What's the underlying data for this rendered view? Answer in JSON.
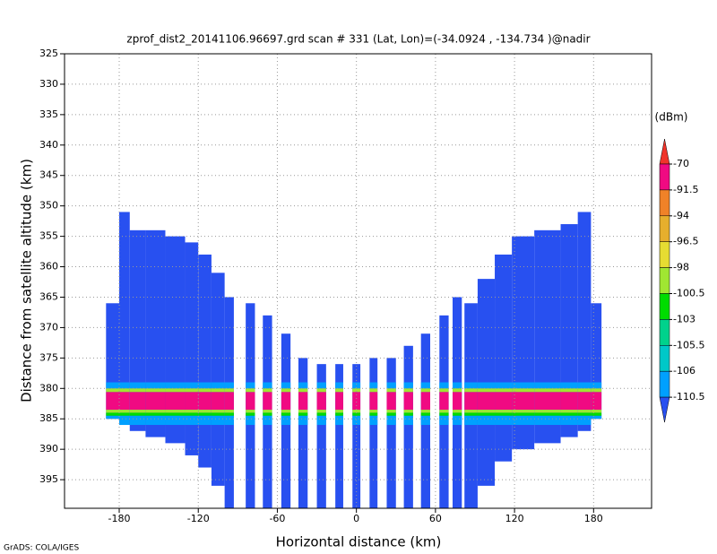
{
  "chart_data": {
    "type": "heatmap",
    "title": "zprof_dist2_20141106.96697.grd  scan # 331  (Lat, Lon)=(-34.0924 , -134.734 )@nadir",
    "x_label": "Horizontal distance (km)",
    "y_label": "Distance from satellite altitude (km)",
    "colorbar_label": "(dBm)",
    "footer": "GrADS: COLA/IGES",
    "xlim": [
      -221.5,
      224
    ],
    "ylim": [
      325,
      399.7
    ],
    "y_inverted": true,
    "xticks": [
      -180,
      -120,
      -60,
      0,
      60,
      120,
      180
    ],
    "yticks": [
      325,
      330,
      335,
      340,
      345,
      350,
      355,
      360,
      365,
      370,
      375,
      380,
      385,
      390,
      395
    ],
    "grid": true,
    "levels": [
      -70,
      -91.5,
      -94,
      -96.5,
      -98,
      -100.5,
      -103,
      -105.5,
      -106,
      -110.5
    ],
    "colors": [
      "#f0342a",
      "#f00a82",
      "#f08228",
      "#e6af2d",
      "#e6dc32",
      "#a0e632",
      "#00dc00",
      "#00d28c",
      "#00c8c8",
      "#00a0ff",
      "#2850f0"
    ],
    "columns": [
      {
        "x": [
          -190,
          -180
        ],
        "y": [
          366,
          385
        ],
        "value": -112
      },
      {
        "x": [
          -180,
          -172
        ],
        "y": [
          351,
          386
        ],
        "value": -112
      },
      {
        "x": [
          -172,
          -160
        ],
        "y": [
          354,
          387
        ],
        "value": -112
      },
      {
        "x": [
          -160,
          -145
        ],
        "y": [
          354,
          388
        ],
        "value": -112
      },
      {
        "x": [
          -145,
          -130
        ],
        "y": [
          355,
          389
        ],
        "value": -112
      },
      {
        "x": [
          -130,
          -120
        ],
        "y": [
          356,
          391
        ],
        "value": -112
      },
      {
        "x": [
          -120,
          -110
        ],
        "y": [
          358,
          393
        ],
        "value": -112
      },
      {
        "x": [
          -110,
          -100
        ],
        "y": [
          361,
          396
        ],
        "value": -112
      },
      {
        "x": [
          -100,
          -93
        ],
        "y": [
          365,
          399.7
        ],
        "value": -112
      },
      {
        "x": [
          -84,
          -77
        ],
        "y": [
          366,
          399.7
        ],
        "value": -112
      },
      {
        "x": [
          -71,
          -64
        ],
        "y": [
          368,
          399.7
        ],
        "value": -112
      },
      {
        "x": [
          -57,
          -50
        ],
        "y": [
          371,
          399.7
        ],
        "value": -112
      },
      {
        "x": [
          -44,
          -37
        ],
        "y": [
          375,
          399.7
        ],
        "value": -112
      },
      {
        "x": [
          -30,
          -23
        ],
        "y": [
          376,
          399.7
        ],
        "value": -112
      },
      {
        "x": [
          -16,
          -10
        ],
        "y": [
          376,
          399.7
        ],
        "value": -112
      },
      {
        "x": [
          -3,
          3
        ],
        "y": [
          376,
          399.7
        ],
        "value": -112
      },
      {
        "x": [
          10,
          16
        ],
        "y": [
          375,
          399.7
        ],
        "value": -112
      },
      {
        "x": [
          23,
          30
        ],
        "y": [
          375,
          399.7
        ],
        "value": -112
      },
      {
        "x": [
          36,
          43
        ],
        "y": [
          373,
          399.7
        ],
        "value": -112
      },
      {
        "x": [
          49,
          56
        ],
        "y": [
          371,
          399.7
        ],
        "value": -112
      },
      {
        "x": [
          63,
          70
        ],
        "y": [
          368,
          399.7
        ],
        "value": -112
      },
      {
        "x": [
          73,
          80
        ],
        "y": [
          365,
          399.7
        ],
        "value": -112
      },
      {
        "x": [
          82,
          92
        ],
        "y": [
          366,
          399.7
        ],
        "value": -112
      },
      {
        "x": [
          92,
          105
        ],
        "y": [
          362,
          396
        ],
        "value": -112
      },
      {
        "x": [
          105,
          118
        ],
        "y": [
          358,
          392
        ],
        "value": -112
      },
      {
        "x": [
          118,
          135
        ],
        "y": [
          355,
          390
        ],
        "value": -112
      },
      {
        "x": [
          135,
          155
        ],
        "y": [
          354,
          389
        ],
        "value": -112
      },
      {
        "x": [
          155,
          168
        ],
        "y": [
          353,
          388
        ],
        "value": -112
      },
      {
        "x": [
          168,
          178
        ],
        "y": [
          351,
          387
        ],
        "value": -112
      },
      {
        "x": [
          178,
          186
        ],
        "y": [
          366,
          385
        ],
        "value": -112
      }
    ],
    "layers": [
      {
        "y": [
          379,
          380
        ],
        "value": -107
      },
      {
        "y": [
          380,
          380.6
        ],
        "value": -99
      },
      {
        "y": [
          380.6,
          383.5
        ],
        "value": -80
      },
      {
        "y": [
          383.5,
          384
        ],
        "value": -99
      },
      {
        "y": [
          384,
          384.5
        ],
        "value": -102
      },
      {
        "y": [
          384.5,
          386
        ],
        "value": -107
      }
    ]
  }
}
